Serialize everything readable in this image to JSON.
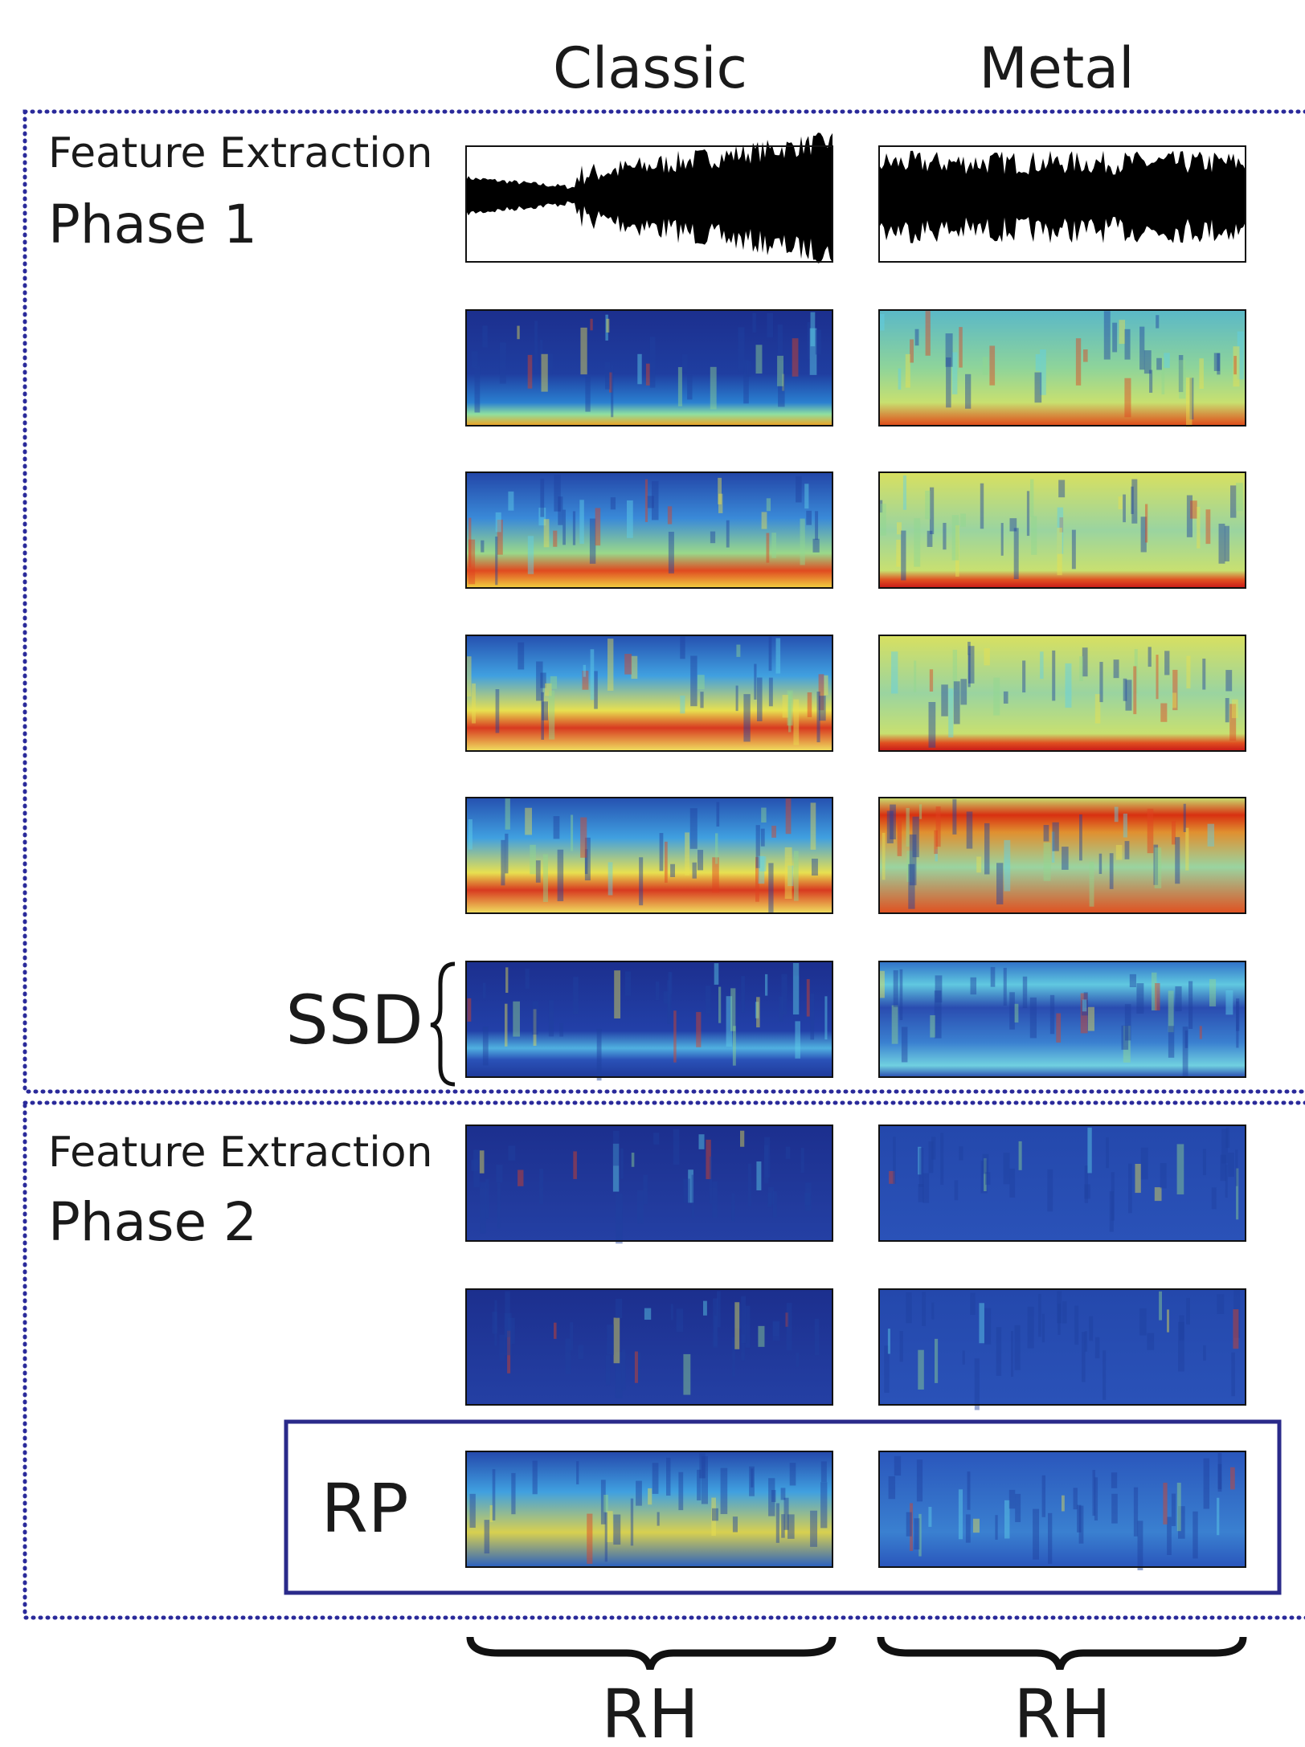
{
  "columns": [
    "Classic",
    "Metal"
  ],
  "phase1": {
    "title": "Feature Extraction",
    "label": "Phase 1",
    "ssd": "SSD"
  },
  "phase2": {
    "title": "Feature Extraction",
    "label": "Phase 2",
    "rp": "RP"
  },
  "footer": [
    "RH",
    "RH"
  ]
}
